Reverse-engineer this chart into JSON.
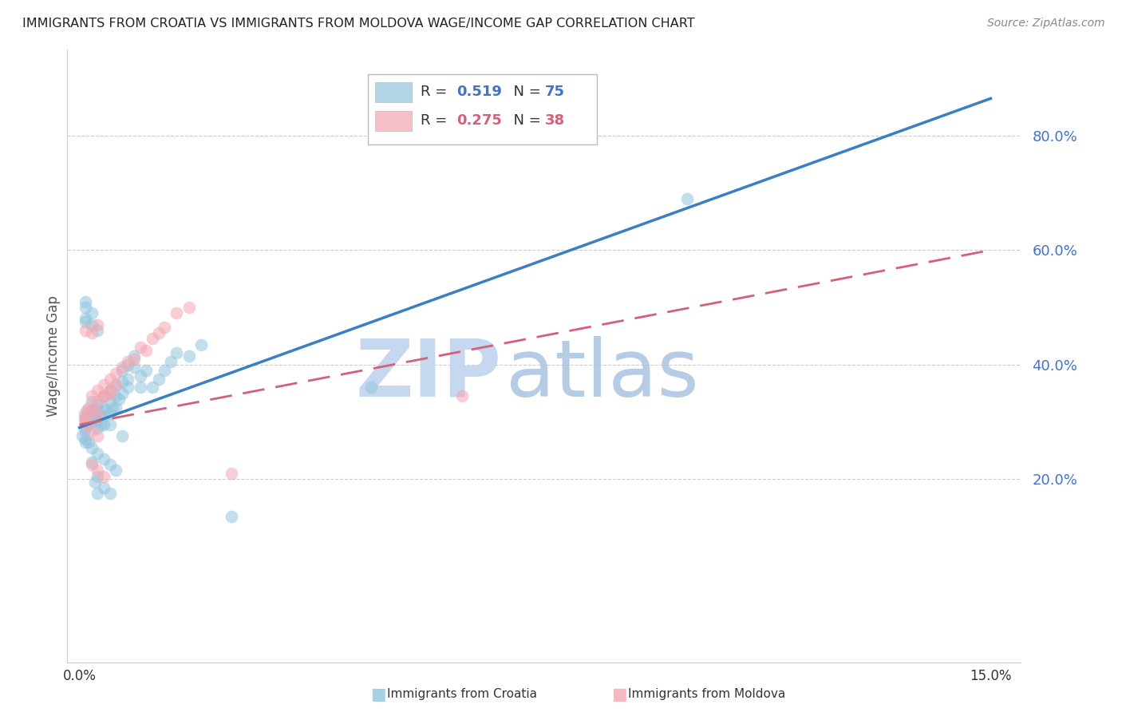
{
  "title": "IMMIGRANTS FROM CROATIA VS IMMIGRANTS FROM MOLDOVA WAGE/INCOME GAP CORRELATION CHART",
  "source": "Source: ZipAtlas.com",
  "ylabel": "Wage/Income Gap",
  "xlim": [
    -0.002,
    0.155
  ],
  "ylim": [
    -0.12,
    0.95
  ],
  "yticks": [
    0.2,
    0.4,
    0.6,
    0.8
  ],
  "ytick_labels": [
    "20.0%",
    "40.0%",
    "60.0%",
    "80.0%"
  ],
  "xtick_positions": [
    0.0,
    0.03,
    0.06,
    0.09,
    0.12,
    0.15
  ],
  "xtick_labels": [
    "0.0%",
    "",
    "",
    "",
    "",
    "15.0%"
  ],
  "croatia_R": 0.519,
  "croatia_N": 75,
  "moldova_R": 0.275,
  "moldova_N": 38,
  "croatia_color": "#92c5de",
  "moldova_color": "#f4a6b2",
  "croatia_line_color": "#3a7fc1",
  "moldova_line_color": "#d4607a",
  "watermark_zip_color": "#c5d8ef",
  "watermark_atlas_color": "#a8c4e0",
  "blue_text_color": "#4472c4",
  "pink_text_color": "#d4607a",
  "blue_line_x0": 0.0,
  "blue_line_y0": 0.29,
  "blue_line_x1": 0.15,
  "blue_line_y1": 0.865,
  "pink_line_x0": 0.0,
  "pink_line_y0": 0.295,
  "pink_line_x1": 0.15,
  "pink_line_y1": 0.6,
  "croatia_x": [
    0.0008,
    0.001,
    0.001,
    0.0012,
    0.0015,
    0.002,
    0.002,
    0.002,
    0.0022,
    0.0025,
    0.003,
    0.003,
    0.003,
    0.003,
    0.0032,
    0.0035,
    0.004,
    0.004,
    0.004,
    0.004,
    0.0042,
    0.005,
    0.005,
    0.005,
    0.005,
    0.0055,
    0.006,
    0.006,
    0.006,
    0.0065,
    0.007,
    0.007,
    0.007,
    0.008,
    0.008,
    0.008,
    0.009,
    0.009,
    0.01,
    0.01,
    0.011,
    0.012,
    0.013,
    0.014,
    0.015,
    0.016,
    0.018,
    0.02,
    0.001,
    0.0015,
    0.002,
    0.003,
    0.004,
    0.005,
    0.006,
    0.007,
    0.001,
    0.002,
    0.003,
    0.001,
    0.002,
    0.001,
    0.001,
    0.0008,
    0.0005,
    0.001,
    0.002,
    0.003,
    0.0025,
    0.004,
    0.003,
    0.005,
    0.048,
    0.025,
    0.1
  ],
  "croatia_y": [
    0.305,
    0.31,
    0.29,
    0.32,
    0.295,
    0.335,
    0.315,
    0.3,
    0.32,
    0.305,
    0.33,
    0.32,
    0.3,
    0.29,
    0.31,
    0.295,
    0.345,
    0.325,
    0.31,
    0.295,
    0.32,
    0.355,
    0.335,
    0.315,
    0.295,
    0.325,
    0.365,
    0.345,
    0.325,
    0.34,
    0.39,
    0.37,
    0.35,
    0.4,
    0.375,
    0.36,
    0.415,
    0.395,
    0.38,
    0.36,
    0.39,
    0.36,
    0.375,
    0.39,
    0.405,
    0.42,
    0.415,
    0.435,
    0.27,
    0.265,
    0.255,
    0.245,
    0.235,
    0.225,
    0.215,
    0.275,
    0.48,
    0.47,
    0.46,
    0.5,
    0.49,
    0.51,
    0.475,
    0.285,
    0.275,
    0.265,
    0.23,
    0.205,
    0.195,
    0.185,
    0.175,
    0.175,
    0.36,
    0.135,
    0.69
  ],
  "moldova_x": [
    0.0008,
    0.001,
    0.0015,
    0.002,
    0.002,
    0.003,
    0.003,
    0.003,
    0.004,
    0.004,
    0.005,
    0.005,
    0.006,
    0.006,
    0.007,
    0.008,
    0.009,
    0.01,
    0.011,
    0.012,
    0.013,
    0.014,
    0.016,
    0.018,
    0.001,
    0.002,
    0.003,
    0.002,
    0.001,
    0.003,
    0.004,
    0.005,
    0.004,
    0.003,
    0.001,
    0.002,
    0.063,
    0.025
  ],
  "moldova_y": [
    0.315,
    0.3,
    0.325,
    0.345,
    0.32,
    0.355,
    0.335,
    0.315,
    0.365,
    0.345,
    0.375,
    0.355,
    0.385,
    0.365,
    0.395,
    0.405,
    0.41,
    0.43,
    0.425,
    0.445,
    0.455,
    0.465,
    0.49,
    0.5,
    0.46,
    0.455,
    0.47,
    0.285,
    0.295,
    0.275,
    0.345,
    0.35,
    0.205,
    0.215,
    0.305,
    0.225,
    0.345,
    0.21
  ]
}
